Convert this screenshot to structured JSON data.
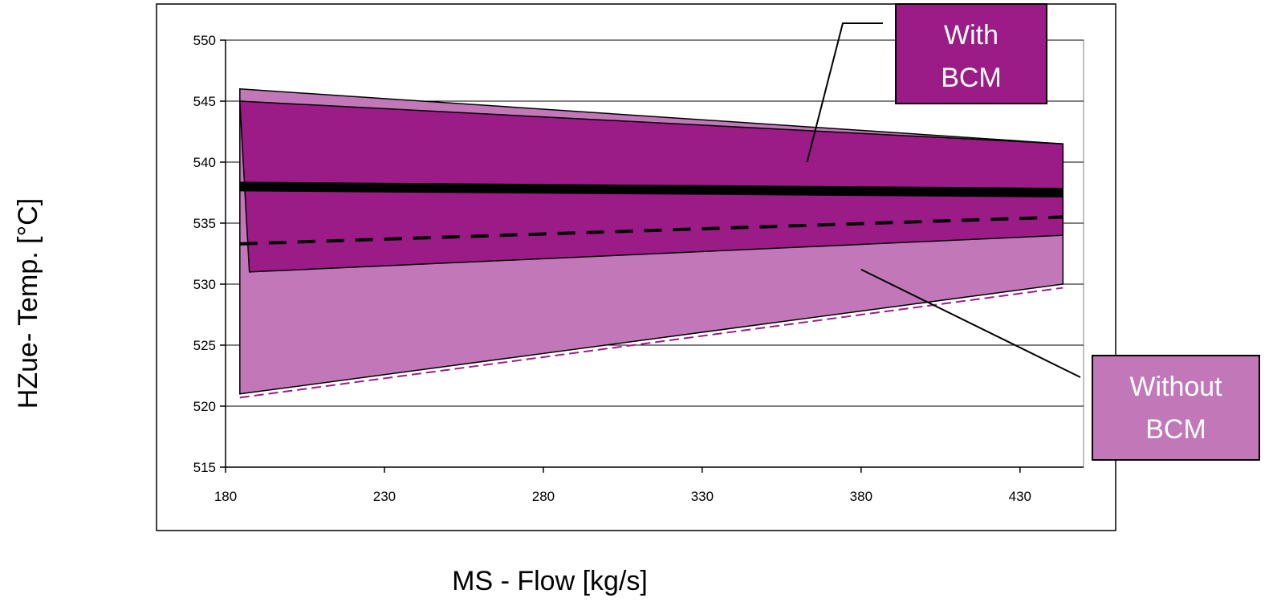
{
  "chart_data": {
    "type": "area",
    "title": "",
    "xlabel": "MS - Flow [kg/s]",
    "ylabel": "HZue- Temp.  [°C]",
    "xlim": [
      180,
      450
    ],
    "ylim": [
      515,
      550
    ],
    "x_ticks": [
      180,
      230,
      280,
      330,
      380,
      430
    ],
    "y_ticks": [
      515,
      520,
      525,
      530,
      535,
      540,
      545,
      550
    ],
    "grid": "horizontal",
    "colors": {
      "without_bcm": "#c278b8",
      "with_bcm": "#9b1c86",
      "outline": "#000000",
      "callout_border": "#000000"
    },
    "regions": [
      {
        "name": "Without BCM",
        "upper": [
          [
            184.5,
            546
          ],
          [
            443.5,
            541.5
          ]
        ],
        "lower": [
          [
            184.5,
            521
          ],
          [
            443.5,
            530
          ]
        ]
      },
      {
        "name": "With BCM",
        "upper": [
          [
            184.5,
            545
          ],
          [
            443.5,
            541.5
          ]
        ],
        "lower": [
          [
            187.5,
            531
          ],
          [
            443.5,
            534
          ]
        ]
      }
    ],
    "lines": [
      {
        "style": "solid-thick",
        "points": [
          [
            184.5,
            538
          ],
          [
            443.5,
            537.5
          ]
        ]
      },
      {
        "style": "dashed",
        "points": [
          [
            184.5,
            533.3
          ],
          [
            443.5,
            535.5
          ]
        ]
      },
      {
        "style": "dashed-thin",
        "points": [
          [
            184.5,
            520.7
          ],
          [
            443.5,
            529.7
          ]
        ]
      }
    ],
    "annotations": [
      {
        "label_line1": "With",
        "label_line2": "BCM",
        "target": [
          363,
          540
        ],
        "color": "#9b1c86"
      },
      {
        "label_line1": "Without",
        "label_line2": "BCM",
        "target": [
          380,
          531.2
        ],
        "color": "#c278b8"
      }
    ]
  }
}
